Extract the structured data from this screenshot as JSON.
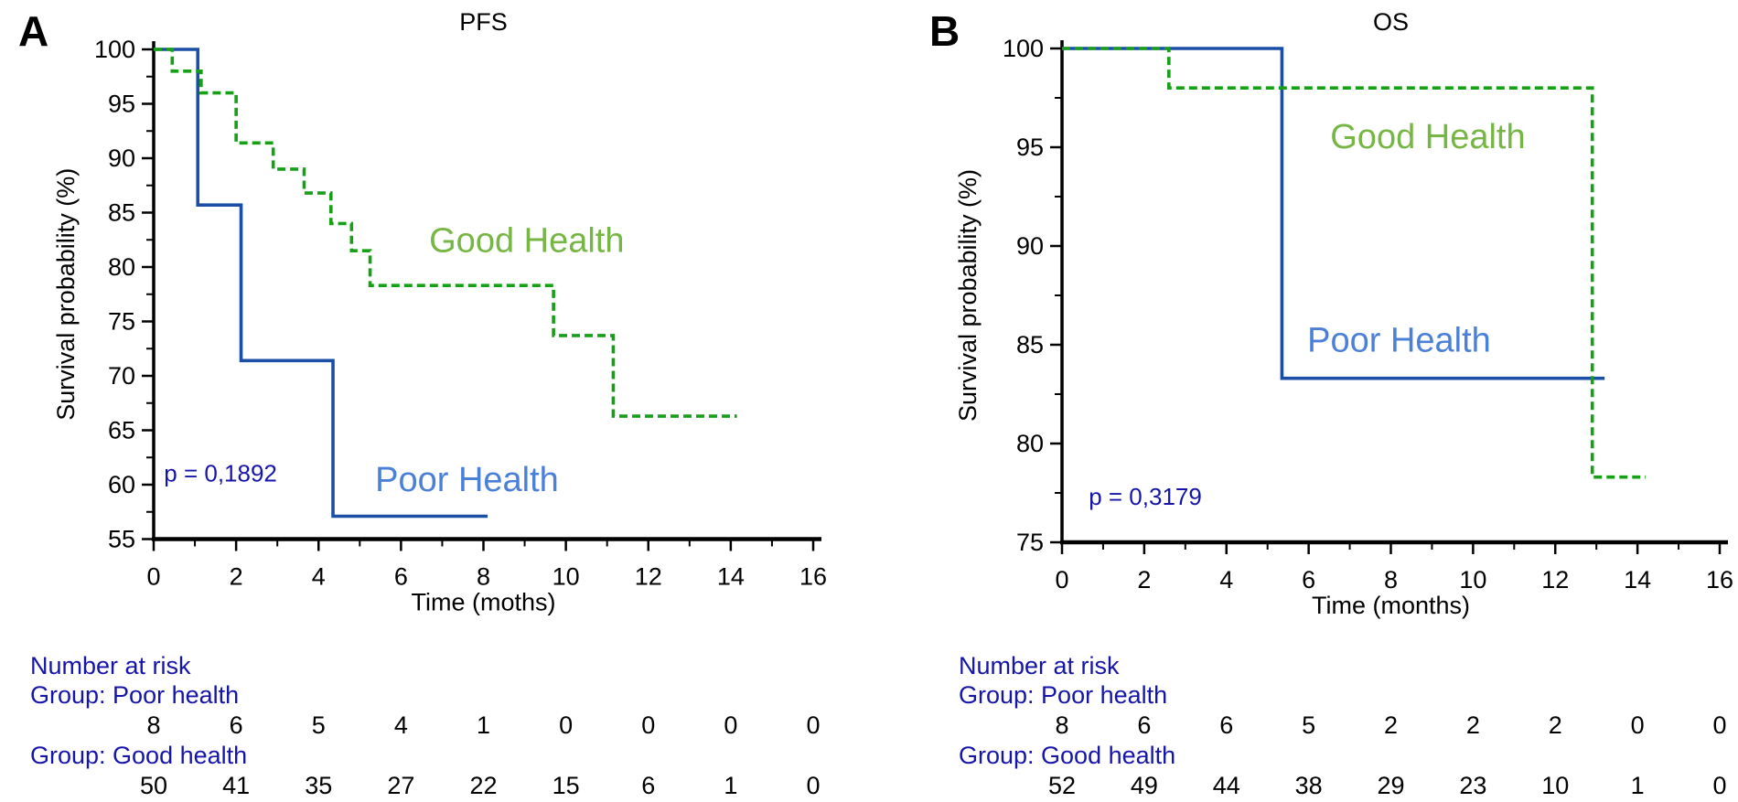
{
  "figure": {
    "background": "#ffffff",
    "colors": {
      "axis": "#000000",
      "annotation_navy": "#1515aa",
      "blue_curve": "#1b4fa5",
      "blue_label": "#4b80d8",
      "green_curve": "#16a016",
      "green_label": "#76b644"
    }
  },
  "chart_data": [
    {
      "type": "line",
      "subtype": "kaplan-meier-step",
      "panel_letter": "A",
      "title": "PFS",
      "xlabel": "Time (moths)",
      "ylabel": "Survival probability (%)",
      "xlim": [
        0,
        16
      ],
      "ylim": [
        55,
        100
      ],
      "x_major_ticks": [
        0,
        2,
        4,
        6,
        8,
        10,
        12,
        14,
        16
      ],
      "y_major_ticks": [
        55,
        60,
        65,
        70,
        75,
        80,
        85,
        90,
        95,
        100
      ],
      "grid": false,
      "p_label": {
        "text": "p = 0,1892",
        "x": 0.25,
        "y": 60.3
      },
      "series": [
        {
          "name": "Poor Health",
          "line_style": "solid",
          "color": "#1b4fa5",
          "label": {
            "text": "Poor Health",
            "x": 7.6,
            "y": 60.4,
            "color": "#4b80d8"
          },
          "steps": [
            [
              0,
              100
            ],
            [
              1.07,
              85.7
            ],
            [
              2.12,
              71.4
            ],
            [
              4.35,
              57.1
            ]
          ],
          "end_x": 8.1
        },
        {
          "name": "Good Health",
          "line_style": "dashed",
          "color": "#16a016",
          "label": {
            "text": "Good Health",
            "x": 9.05,
            "y": 82.4,
            "color": "#76b644"
          },
          "steps": [
            [
              0,
              100
            ],
            [
              0.45,
              98
            ],
            [
              1.15,
              96
            ],
            [
              2.0,
              91.4
            ],
            [
              2.9,
              89
            ],
            [
              3.65,
              86.8
            ],
            [
              4.3,
              84
            ],
            [
              4.8,
              81.5
            ],
            [
              5.25,
              78.3
            ],
            [
              9.7,
              73.7
            ],
            [
              11.15,
              66.3
            ]
          ],
          "end_x": 14.15
        }
      ],
      "risk_table": {
        "header": "Number at risk",
        "count_times": [
          0,
          2,
          4,
          6,
          8,
          10,
          12,
          14,
          16
        ],
        "groups": [
          {
            "label": "Group: Poor health",
            "counts": [
              8,
              6,
              5,
              4,
              1,
              0,
              0,
              0,
              0
            ]
          },
          {
            "label": "Group: Good health",
            "counts": [
              50,
              41,
              35,
              27,
              22,
              15,
              6,
              1,
              0
            ]
          }
        ]
      }
    },
    {
      "type": "line",
      "subtype": "kaplan-meier-step",
      "panel_letter": "B",
      "title": "OS",
      "xlabel": "Time (months)",
      "ylabel": "Survival probability (%)",
      "xlim": [
        0,
        16
      ],
      "ylim": [
        75,
        100
      ],
      "x_major_ticks": [
        0,
        2,
        4,
        6,
        8,
        10,
        12,
        14,
        16
      ],
      "y_major_ticks": [
        75,
        80,
        85,
        90,
        95,
        100
      ],
      "grid": false,
      "p_label": {
        "text": "p = 0,3179",
        "x": 0.65,
        "y": 76.9
      },
      "series": [
        {
          "name": "Poor Health",
          "line_style": "solid",
          "color": "#1b4fa5",
          "label": {
            "text": "Poor Health",
            "x": 8.2,
            "y": 85.2,
            "color": "#4b80d8"
          },
          "steps": [
            [
              0,
              100
            ],
            [
              5.35,
              83.3
            ]
          ],
          "end_x": 13.2
        },
        {
          "name": "Good Health",
          "line_style": "dashed",
          "color": "#16a016",
          "label": {
            "text": "Good Health",
            "x": 8.9,
            "y": 95.5,
            "color": "#76b644"
          },
          "steps": [
            [
              0,
              100
            ],
            [
              2.6,
              98
            ],
            [
              12.9,
              78.3
            ]
          ],
          "end_x": 14.2
        }
      ],
      "risk_table": {
        "header": "Number at risk",
        "count_times": [
          0,
          2,
          4,
          6,
          8,
          10,
          12,
          14,
          16
        ],
        "groups": [
          {
            "label": "Group: Poor health",
            "counts": [
              8,
              6,
              6,
              5,
              2,
              2,
              2,
              0,
              0
            ]
          },
          {
            "label": "Group: Good health",
            "counts": [
              52,
              49,
              44,
              38,
              29,
              23,
              10,
              1,
              0
            ]
          }
        ]
      }
    }
  ]
}
